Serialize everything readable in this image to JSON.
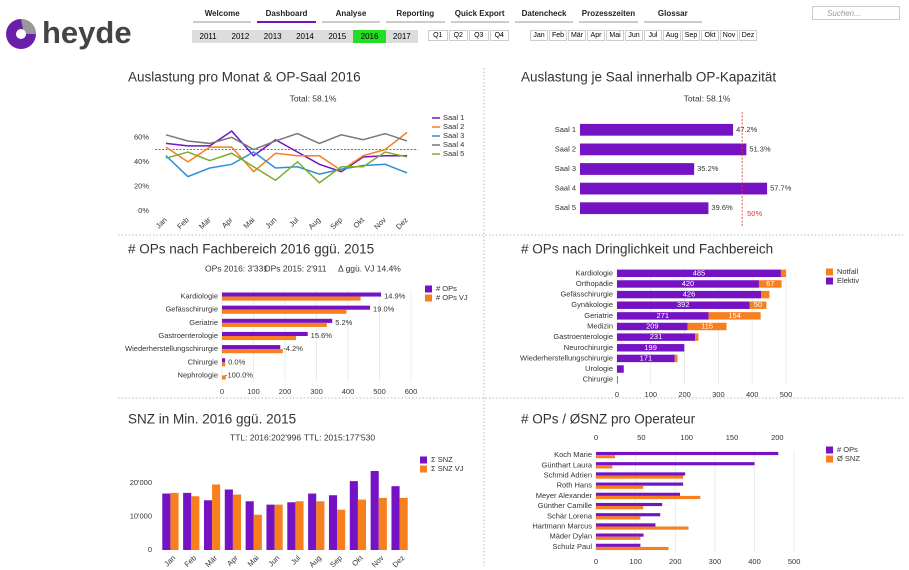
{
  "header": {
    "logo": "heyde",
    "nav": [
      {
        "label": "Welcome",
        "active": false
      },
      {
        "label": "Dashboard",
        "active": true
      },
      {
        "label": "Analyse",
        "active": false
      },
      {
        "label": "Reporting",
        "active": false
      },
      {
        "label": "Quick Export",
        "active": false
      },
      {
        "label": "Datencheck",
        "active": false
      },
      {
        "label": "Prozesszeiten",
        "active": false
      },
      {
        "label": "Glossar",
        "active": false
      }
    ],
    "years": [
      {
        "label": "2011",
        "selected": false
      },
      {
        "label": "2012",
        "selected": false
      },
      {
        "label": "2013",
        "selected": false
      },
      {
        "label": "2014",
        "selected": false
      },
      {
        "label": "2015",
        "selected": false
      },
      {
        "label": "2016",
        "selected": true
      },
      {
        "label": "2017",
        "selected": false
      }
    ],
    "quarters": [
      "Q1",
      "Q2",
      "Q3",
      "Q4"
    ],
    "months": [
      "Jan",
      "Feb",
      "Mär",
      "Apr",
      "Mai",
      "Jun",
      "Jul",
      "Aug",
      "Sep",
      "Okt",
      "Nov",
      "Dez"
    ],
    "search_placeholder": "Suchen..."
  },
  "chart_data": [
    {
      "type": "line",
      "title": "Auslastung pro Monat & OP-Saal 2016",
      "subtitle": "Total: 58.1%",
      "categories": [
        "Jan",
        "Feb",
        "Mär",
        "Apr",
        "Mai",
        "Jun",
        "Jul",
        "Aug",
        "Sep",
        "Okt",
        "Nov",
        "Dez"
      ],
      "series": [
        {
          "name": "Saal 1",
          "color": "#7512c4",
          "values": [
            55,
            53,
            53,
            65,
            45,
            58,
            48,
            38,
            32,
            44,
            45,
            45
          ]
        },
        {
          "name": "Saal 2",
          "color": "#f77f1e",
          "values": [
            52,
            40,
            52,
            52,
            32,
            47,
            45,
            45,
            33,
            45,
            50,
            64
          ]
        },
        {
          "name": "Saal 3",
          "color": "#2f8fd8",
          "values": [
            45,
            28,
            35,
            38,
            48,
            35,
            36,
            30,
            34,
            37,
            38,
            31
          ]
        },
        {
          "name": "Saal 4",
          "color": "#777777",
          "values": [
            62,
            57,
            55,
            60,
            50,
            57,
            63,
            55,
            62,
            58,
            63,
            57
          ]
        },
        {
          "name": "Saal 5",
          "color": "#7cad2e",
          "values": [
            43,
            48,
            41,
            47,
            36,
            25,
            40,
            23,
            36,
            36,
            48,
            44
          ]
        }
      ],
      "ylim": [
        0,
        70
      ],
      "yticks": [
        {
          "value": 0,
          "label": "0%"
        },
        {
          "value": 20,
          "label": "20%"
        },
        {
          "value": 40,
          "label": "40%"
        },
        {
          "value": 60,
          "label": "60%"
        }
      ],
      "reference_line": 50,
      "reference_color": "#e03030",
      "grid": false
    },
    {
      "type": "bar",
      "orientation": "horizontal",
      "title": "Auslastung je Saal innerhalb OP-Kapazität",
      "subtitle": "Total: 58.1%",
      "categories": [
        "Saal 1",
        "Saal 2",
        "Saal 3",
        "Saal 4",
        "Saal 5"
      ],
      "values": [
        47.2,
        51.3,
        35.2,
        57.7,
        39.6
      ],
      "value_labels": [
        "47.2%",
        "51.3%",
        "35.2%",
        "57.7%",
        "39.6%"
      ],
      "color": "#7512c4",
      "xlim": [
        0,
        70
      ],
      "reference_line": {
        "value": 50,
        "label": "50%"
      },
      "reference_color": "#e03030",
      "grid": false
    },
    {
      "type": "bar",
      "orientation": "horizontal",
      "title": "# OPs nach Fachbereich 2016 ggü. 2015",
      "subtitles": [
        "OPs 2016: 3'331",
        "OPs 2015: 2'911",
        "Δ ggü. VJ 14.4%"
      ],
      "categories": [
        "Kardiologie",
        "Gefässchirurgie",
        "Geriatrie",
        "Gastroenterologie",
        "Wiederherstellungschirurgie",
        "Chirurgie",
        "Nephrologie"
      ],
      "series": [
        {
          "name": "# OPs",
          "color": "#7512c4",
          "values": [
            505,
            470,
            350,
            272,
            185,
            10,
            0
          ]
        },
        {
          "name": "# OPs VJ",
          "color": "#f77f1e",
          "values": [
            440,
            395,
            333,
            235,
            193,
            10,
            12
          ]
        }
      ],
      "delta_labels": [
        "14.9%",
        "19.0%",
        "5.2%",
        "15.6%",
        "-4.2%",
        "0.0%",
        "-100.0%"
      ],
      "xlim": [
        0,
        600
      ],
      "xticks": [
        0,
        100,
        200,
        300,
        400,
        500,
        600
      ],
      "grid": true
    },
    {
      "type": "stacked_bar",
      "orientation": "horizontal",
      "title": "# OPs nach Dringlichkeit und Fachbereich",
      "categories": [
        "Kardiologie",
        "Orthopädie",
        "Gefässchirurgie",
        "Gynäkologie",
        "Geriatrie",
        "Medizin",
        "Gastroenterologie",
        "Neurochirurgie",
        "Wiederherstellungschirurgie",
        "Urologie",
        "Chirurgie"
      ],
      "series": [
        {
          "name": "Notfall",
          "color": "#f77f1e",
          "values": [
            15,
            67,
            25,
            50,
            154,
            115,
            10,
            0,
            8,
            0,
            0
          ]
        },
        {
          "name": "Elektiv",
          "color": "#7512c4",
          "values": [
            485,
            420,
            426,
            392,
            271,
            209,
            231,
            199,
            171,
            20,
            2
          ]
        }
      ],
      "xlim": [
        0,
        500
      ],
      "xticks": [
        0,
        100,
        200,
        300,
        400,
        500
      ],
      "grid": true
    },
    {
      "type": "bar",
      "orientation": "vertical",
      "title": "SNZ in Min. 2016 ggü. 2015",
      "subtitles": [
        "TTL: 2016:202'996",
        "TTL: 2015:177'530"
      ],
      "categories": [
        "Jan",
        "Feb",
        "Mär",
        "Apr",
        "Mai",
        "Jun",
        "Jul",
        "Aug",
        "Sep",
        "Okt",
        "Nov",
        "Dez"
      ],
      "series": [
        {
          "name": "Σ SNZ",
          "color": "#7512c4",
          "values": [
            16800,
            17000,
            14800,
            18000,
            14500,
            13500,
            14200,
            16800,
            16300,
            20500,
            23500,
            19000
          ]
        },
        {
          "name": "Σ SNZ VJ",
          "color": "#f77f1e",
          "values": [
            17000,
            16000,
            19500,
            16500,
            10500,
            13500,
            14500,
            14500,
            12000,
            15000,
            15500,
            15500
          ]
        }
      ],
      "ylim": [
        0,
        25000
      ],
      "yticks": [
        0,
        {
          "value": 10000,
          "label": "10'000"
        },
        {
          "value": 20000,
          "label": "20'000"
        }
      ],
      "grid": false
    },
    {
      "type": "bar",
      "orientation": "horizontal",
      "title": "# OPs / ØSNZ pro Operateur",
      "categories": [
        "Koch Marie",
        "Günthart Laura",
        "Schmid Adrien",
        "Roth Hans",
        "Meyer Alexander",
        "Günther Camille",
        "Schär Lorena",
        "Hartmann Marcus",
        "Mäder Dylan",
        "Schulz Paul"
      ],
      "series": [
        {
          "name": "# OPs",
          "color": "#7512c4",
          "values": [
            460,
            400,
            225,
            220,
            212,
            167,
            162,
            150,
            120,
            112
          ]
        },
        {
          "name": "Ø SNZ",
          "color": "#f77f1e",
          "axis": "x2",
          "values": [
            21,
            18,
            96,
            52,
            115,
            52,
            49,
            102,
            49,
            80
          ]
        }
      ],
      "xlim": [
        0,
        540
      ],
      "xticks": [
        0,
        100,
        200,
        300,
        400,
        500
      ],
      "x2lim": [
        0,
        236
      ],
      "x2ticks": [
        0,
        50,
        100,
        150,
        200
      ],
      "grid": true
    }
  ]
}
